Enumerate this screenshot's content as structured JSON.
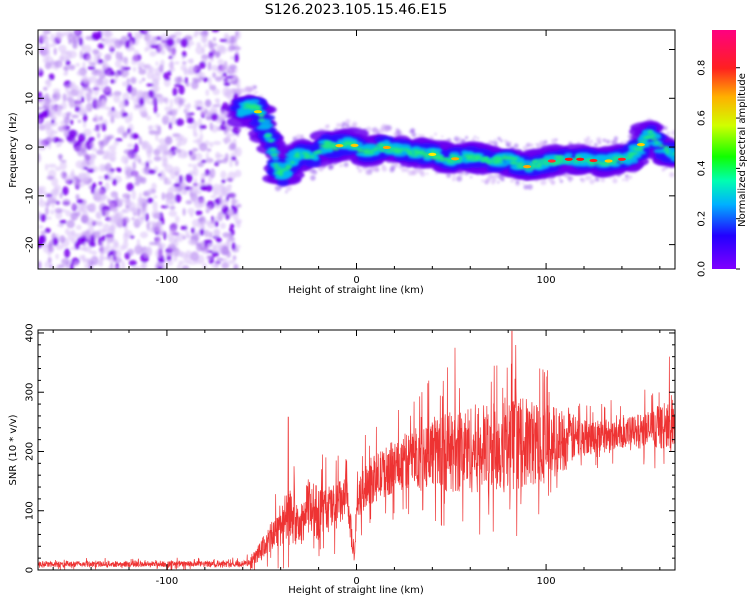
{
  "title": "S126.2023.105.15.46.E15",
  "chart_data": [
    {
      "type": "heatmap",
      "xlabel": "Height of straight line (km)",
      "ylabel": "Frequency (Hz)",
      "xlim": [
        -168,
        168
      ],
      "ylim": [
        -25,
        24
      ],
      "x_ticks": [
        -100,
        0,
        100
      ],
      "y_ticks": [
        -20,
        -10,
        0,
        10,
        20
      ],
      "colorbar": {
        "label": "Normalized spectral amplitude",
        "range": [
          0,
          0.95
        ],
        "ticks": [
          0.0,
          0.2,
          0.4,
          0.6,
          0.8
        ],
        "tick_labels": [
          "0.0",
          "0.2",
          "0.4",
          "0.6",
          "0.8"
        ],
        "colormap": "gist_rainbow (violet→blue→cyan→green→yellow→orange→red→magenta)"
      },
      "noise_region_x": [
        -168,
        -62
      ],
      "ridge": {
        "x": [
          -62,
          -58,
          -54,
          -50,
          -46,
          -42,
          -39,
          -37,
          -33,
          -28,
          -22,
          -17,
          -12,
          -7,
          -3,
          0,
          5,
          10,
          15,
          20,
          30,
          40,
          50,
          60,
          70,
          80,
          90,
          100,
          110,
          120,
          130,
          140,
          145,
          150,
          155,
          160,
          165,
          168
        ],
        "y": [
          7,
          8,
          8.5,
          6,
          2,
          -4,
          -6,
          -5,
          -2,
          -1.5,
          -2,
          0.5,
          0,
          0.5,
          1,
          0,
          -1,
          -0.5,
          0,
          -0.5,
          -1,
          -1.5,
          -2.5,
          -2,
          -3,
          -2.5,
          -4,
          -3,
          -2.5,
          -2.5,
          -3,
          -2.5,
          -2,
          0.5,
          3,
          0,
          -1,
          -1.5
        ]
      }
    },
    {
      "type": "line",
      "xlabel": "Height of straight line (km)",
      "ylabel": "SNR (10 * v/v)",
      "xlim": [
        -168,
        168
      ],
      "ylim": [
        0,
        405
      ],
      "x_ticks": [
        -100,
        0,
        100
      ],
      "y_ticks": [
        0,
        100,
        200,
        300,
        400
      ],
      "series": [
        {
          "color": "#ee3333",
          "envelope_x": [
            -168,
            -60,
            -55,
            -50,
            -45,
            -40,
            -35,
            -30,
            -25,
            -20,
            -10,
            -5,
            -1,
            0,
            5,
            10,
            20,
            30,
            40,
            50,
            60,
            70,
            80,
            90,
            100,
            110,
            120,
            130,
            140,
            150,
            160,
            168
          ],
          "mean_y": [
            10,
            10,
            15,
            35,
            55,
            80,
            90,
            70,
            110,
            95,
            110,
            120,
            20,
            110,
            145,
            155,
            175,
            190,
            200,
            200,
            205,
            205,
            210,
            215,
            215,
            220,
            225,
            228,
            230,
            235,
            240,
            240
          ],
          "spread_y": [
            5,
            5,
            8,
            18,
            25,
            40,
            45,
            30,
            50,
            45,
            40,
            35,
            10,
            30,
            40,
            40,
            45,
            50,
            60,
            70,
            75,
            75,
            80,
            75,
            70,
            50,
            30,
            28,
            25,
            30,
            35,
            35
          ],
          "peaks": [
            {
              "x": -36,
              "y": 258
            },
            {
              "x": -33,
              "y": 175
            },
            {
              "x": -18,
              "y": 195
            },
            {
              "x": 52,
              "y": 375
            },
            {
              "x": 82,
              "y": 403
            },
            {
              "x": 74,
              "y": 345
            },
            {
              "x": 165,
              "y": 360
            }
          ]
        }
      ]
    }
  ]
}
